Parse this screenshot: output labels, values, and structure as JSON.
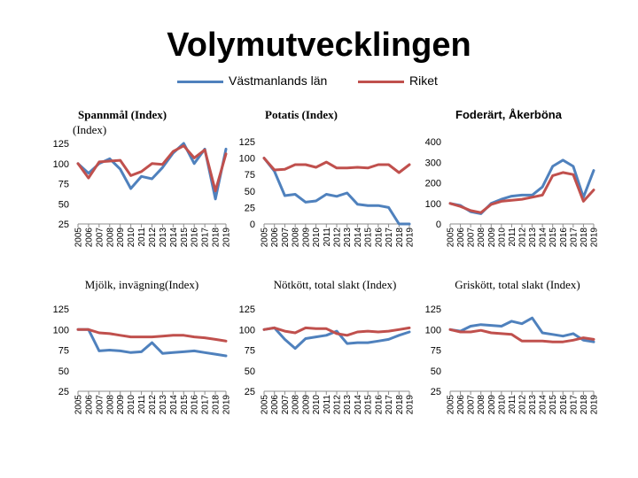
{
  "page_title": "Volymutvecklingen",
  "legend": {
    "series1": {
      "label": "Västmanlands län",
      "color": "#4F81BD"
    },
    "series2": {
      "label": "Riket",
      "color": "#C0504D"
    }
  },
  "chart_data": [
    {
      "type": "line",
      "title": "Spannmål (Index)",
      "subtitle": "(Index)",
      "x": [
        "2005",
        "2006",
        "2007",
        "2008",
        "2009",
        "2010",
        "2011",
        "2012",
        "2013",
        "2014",
        "2015",
        "2016",
        "2017",
        "2018",
        "2019"
      ],
      "ylim": [
        25,
        125
      ],
      "yticks": [
        25,
        50,
        75,
        100,
        125
      ],
      "series": [
        {
          "name": "Västmanlands län",
          "values": [
            100,
            88,
            100,
            106,
            93,
            69,
            84,
            81,
            95,
            113,
            125,
            100,
            118,
            56,
            118
          ]
        },
        {
          "name": "Riket",
          "values": [
            100,
            82,
            102,
            103,
            104,
            85,
            90,
            100,
            99,
            115,
            122,
            107,
            117,
            66,
            112
          ]
        }
      ]
    },
    {
      "type": "line",
      "title": "Potatis (Index)",
      "x": [
        "2005",
        "2006",
        "2007",
        "2008",
        "2009",
        "2010",
        "2011",
        "2012",
        "2013",
        "2014",
        "2015",
        "2016",
        "2017",
        "2018",
        "2019"
      ],
      "ylim": [
        0,
        125
      ],
      "yticks": [
        0,
        25,
        50,
        75,
        100,
        125
      ],
      "series": [
        {
          "name": "Västmanlands län",
          "values": [
            100,
            80,
            43,
            45,
            33,
            35,
            45,
            42,
            47,
            30,
            28,
            28,
            25,
            0,
            0
          ]
        },
        {
          "name": "Riket",
          "values": [
            100,
            82,
            83,
            90,
            90,
            86,
            94,
            85,
            85,
            86,
            85,
            90,
            90,
            78,
            90
          ]
        }
      ]
    },
    {
      "type": "line",
      "title": "Foderärt, Åkerböna",
      "x": [
        "2005",
        "2006",
        "2007",
        "2008",
        "2009",
        "2010",
        "2011",
        "2012",
        "2013",
        "2014",
        "2015",
        "2016",
        "2017",
        "2018",
        "2019"
      ],
      "ylim": [
        0,
        400
      ],
      "yticks": [
        0,
        100,
        200,
        300,
        400
      ],
      "series": [
        {
          "name": "Västmanlands län",
          "values": [
            100,
            90,
            60,
            50,
            100,
            120,
            135,
            140,
            140,
            180,
            280,
            310,
            280,
            130,
            260
          ]
        },
        {
          "name": "Riket",
          "values": [
            100,
            85,
            65,
            55,
            95,
            110,
            115,
            120,
            130,
            140,
            235,
            250,
            240,
            110,
            165
          ]
        }
      ]
    },
    {
      "type": "line",
      "title": "Mjölk, invägning(Index)",
      "x": [
        "2005",
        "2006",
        "2007",
        "2008",
        "2009",
        "2010",
        "2011",
        "2012",
        "2013",
        "2014",
        "2015",
        "2016",
        "2017",
        "2018",
        "2019"
      ],
      "ylim": [
        25,
        125
      ],
      "yticks": [
        25,
        50,
        75,
        100,
        125
      ],
      "series": [
        {
          "name": "Västmanlands län",
          "values": [
            100,
            100,
            74,
            75,
            74,
            72,
            73,
            84,
            71,
            72,
            73,
            74,
            72,
            70,
            68
          ]
        },
        {
          "name": "Riket",
          "values": [
            100,
            100,
            96,
            95,
            93,
            91,
            91,
            91,
            92,
            93,
            93,
            91,
            90,
            88,
            86
          ]
        }
      ]
    },
    {
      "type": "line",
      "title": "Nötkött, total slakt (Index)",
      "x": [
        "2005",
        "2006",
        "2007",
        "2008",
        "2009",
        "2010",
        "2011",
        "2012",
        "2013",
        "2014",
        "2015",
        "2016",
        "2017",
        "2018",
        "2019"
      ],
      "ylim": [
        25,
        125
      ],
      "yticks": [
        25,
        50,
        75,
        100,
        125
      ],
      "series": [
        {
          "name": "Västmanlands län",
          "values": [
            100,
            102,
            88,
            77,
            89,
            91,
            93,
            98,
            83,
            84,
            84,
            86,
            88,
            93,
            97
          ]
        },
        {
          "name": "Riket",
          "values": [
            100,
            102,
            98,
            96,
            102,
            101,
            101,
            95,
            93,
            97,
            98,
            97,
            98,
            100,
            102
          ]
        }
      ]
    },
    {
      "type": "line",
      "title": "Griskött, total slakt (Index)",
      "x": [
        "2005",
        "2006",
        "2007",
        "2008",
        "2009",
        "2010",
        "2011",
        "2012",
        "2013",
        "2014",
        "2015",
        "2016",
        "2017",
        "2018",
        "2019"
      ],
      "ylim": [
        25,
        125
      ],
      "yticks": [
        25,
        50,
        75,
        100,
        125
      ],
      "series": [
        {
          "name": "Västmanlands län",
          "values": [
            100,
            98,
            104,
            106,
            105,
            104,
            110,
            107,
            114,
            96,
            94,
            92,
            95,
            87,
            85
          ]
        },
        {
          "name": "Riket",
          "values": [
            100,
            97,
            97,
            99,
            96,
            95,
            94,
            86,
            86,
            86,
            85,
            85,
            87,
            90,
            88
          ]
        }
      ]
    }
  ]
}
